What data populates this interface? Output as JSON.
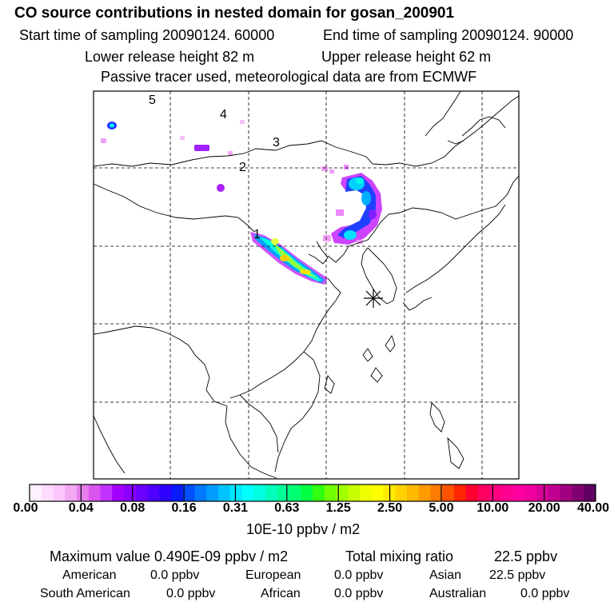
{
  "header": {
    "title": "CO  source contributions in nested domain for gosan_200901",
    "start_time": "Start time of sampling 20090124. 60000",
    "end_time": "End time of sampling 20090124. 90000",
    "lower_height": "Lower release height   82 m",
    "upper_height": "Upper release height   62 m",
    "tracer_note": "Passive tracer used, meteorological data are from ECMWF"
  },
  "map": {
    "markers": [
      {
        "label": "1"
      },
      {
        "label": "2"
      },
      {
        "label": "3"
      },
      {
        "label": "4"
      },
      {
        "label": "5"
      }
    ],
    "receptor_symbol": "asterisk-icon"
  },
  "colorbar": {
    "tick_labels": [
      "0.00",
      "0.04",
      "0.08",
      "0.16",
      "0.31",
      "0.63",
      "1.25",
      "2.50",
      "5.00",
      "10.00",
      "20.00",
      "40.00"
    ],
    "units": "10E-10 ppbv / m2",
    "colors": [
      "#fff0ff",
      "#ffdcff",
      "#fcc6fb",
      "#f2a9f1",
      "#e67fea",
      "#d955ee",
      "#c133ff",
      "#a300ff",
      "#8a00ff",
      "#6c00ff",
      "#4d00ff",
      "#2e00ff",
      "#0a1aff",
      "#0050ff",
      "#0078ff",
      "#009dff",
      "#00c4ff",
      "#00e6ff",
      "#00ffff",
      "#00ffe0",
      "#00ffbd",
      "#00ff96",
      "#00ff70",
      "#00ff40",
      "#30ff10",
      "#70ff00",
      "#a0ff00",
      "#c8ff00",
      "#f0ff00",
      "#ffff00",
      "#ffea00",
      "#ffd200",
      "#ffb800",
      "#ff9a00",
      "#ff7a00",
      "#ff5200",
      "#ff2600",
      "#ff0030",
      "#ff0060",
      "#ff0080",
      "#ff0090",
      "#ff00a0",
      "#f000a0",
      "#d80098",
      "#c00090",
      "#a00080",
      "#800070",
      "#600060"
    ]
  },
  "stats": {
    "max_value": "Maximum value  0.490E-09 ppbv / m2",
    "total_label": "Total mixing ratio",
    "total_value": "22.5 ppbv",
    "regions": [
      {
        "name": "American",
        "value": "0.0 ppbv"
      },
      {
        "name": "European",
        "value": "0.0 ppbv"
      },
      {
        "name": "Asian",
        "value": "22.5 ppbv"
      },
      {
        "name": "South American",
        "value": "0.0 ppbv"
      },
      {
        "name": "African",
        "value": "0.0 ppbv"
      },
      {
        "name": "Australian",
        "value": "0.0 ppbv"
      }
    ]
  }
}
